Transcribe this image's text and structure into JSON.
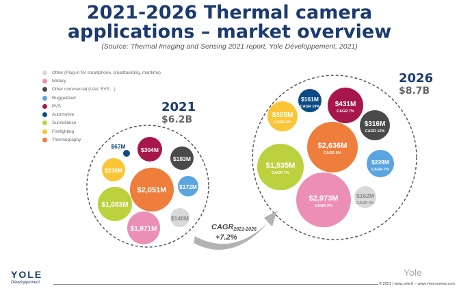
{
  "header": {
    "title_line1": "2021-2026 Thermal camera",
    "title_line2": "applications – market overview",
    "source": "(Source: Thermal Imaging and Sensing 2021 report, Yole Développement, 2021)"
  },
  "chart_data": {
    "type": "bubble",
    "title": "2021-2026 Thermal camera applications – market overview",
    "legend_placement": "top-left",
    "categories": [
      {
        "name": "Other (Plug-in for smartphone, smartbuilding, maritime)",
        "color": "#d9d9d9"
      },
      {
        "name": "Military",
        "color": "#ec8fb5"
      },
      {
        "name": "Other commercial (UAV, EVS…)",
        "color": "#4a4a4a"
      },
      {
        "name": "Ruggedized",
        "color": "#5aa5df"
      },
      {
        "name": "PVS",
        "color": "#a8174a"
      },
      {
        "name": "Automotive",
        "color": "#0b4a85"
      },
      {
        "name": "Surveillance",
        "color": "#bcd13e"
      },
      {
        "name": "Firefighting",
        "color": "#fbc538"
      },
      {
        "name": "Thermography",
        "color": "#ef7d3c"
      }
    ],
    "years": [
      {
        "year": "2021",
        "total": "$6.2B",
        "unit": "$M",
        "values": [
          {
            "category": "Automotive",
            "value": 67,
            "label": "$67M"
          },
          {
            "category": "PVS",
            "value": 304,
            "label": "$304M"
          },
          {
            "category": "Other commercial (UAV, EVS…)",
            "value": 183,
            "label": "$183M"
          },
          {
            "category": "Firefighting",
            "value": 230,
            "label": "$230M"
          },
          {
            "category": "Thermography",
            "value": 2051,
            "label": "$2,051M"
          },
          {
            "category": "Ruggedized",
            "value": 172,
            "label": "$172M"
          },
          {
            "category": "Surveillance",
            "value": 1083,
            "label": "$1,083M"
          },
          {
            "category": "Military",
            "value": 1971,
            "label": "$1,971M"
          },
          {
            "category": "Other (Plug-in for smartphone, smartbuilding, maritime)",
            "value": 140,
            "label": "$140M"
          }
        ]
      },
      {
        "year": "2026",
        "total": "$8.7B",
        "unit": "$M",
        "values": [
          {
            "category": "Automotive",
            "value": 161,
            "label": "$161M",
            "cagr": "CAGR 19%"
          },
          {
            "category": "PVS",
            "value": 431,
            "label": "$431M",
            "cagr": "CAGR 7%"
          },
          {
            "category": "Firefighting",
            "value": 305,
            "label": "$305M",
            "cagr": "CAGR 6%"
          },
          {
            "category": "Other commercial (UAV, EVS…)",
            "value": 316,
            "label": "$316M",
            "cagr": "CAGR 12%"
          },
          {
            "category": "Thermography",
            "value": 2636,
            "label": "$2,636M",
            "cagr": "CAGR 5%"
          },
          {
            "category": "Surveillance",
            "value": 1535,
            "label": "$1,535M",
            "cagr": "CAGR 7%"
          },
          {
            "category": "Ruggedized",
            "value": 239,
            "label": "$239M",
            "cagr": "CAGR 7%"
          },
          {
            "category": "Military",
            "value": 2973,
            "label": "$2,973M",
            "cagr": "CAGR 9%"
          },
          {
            "category": "Other (Plug-in for smartphone, smartbuilding, maritime)",
            "value": 162,
            "label": "$162M",
            "cagr": "CAGR 3%"
          }
        ]
      }
    ],
    "overall_cagr_label": "CAGR",
    "overall_cagr_period": "2021-2026",
    "overall_cagr_value": "+7.2%"
  },
  "footer": {
    "logo": "YOLE",
    "logo_sub": "Développement",
    "copyright": "© 2021 | www.yole.fr – www.i-micronews.com",
    "watermark": "Yole"
  }
}
